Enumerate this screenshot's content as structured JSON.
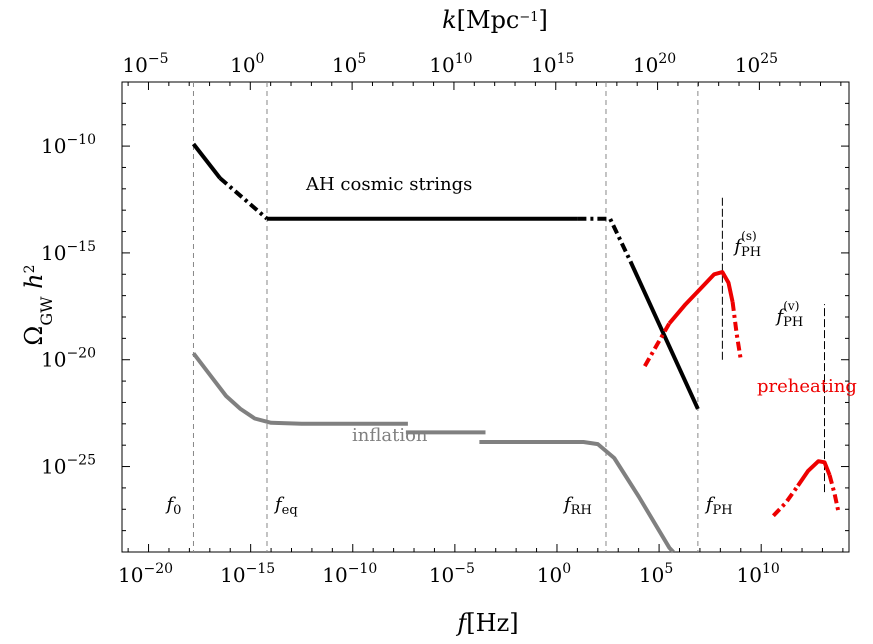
{
  "chart_data": {
    "type": "line",
    "xlabel": "f[Hz]",
    "ylabel": "Ω_GW h²",
    "top_xlabel": "k[Mpc⁻¹]",
    "x_scale": "log",
    "y_scale": "log",
    "xlim_exp": [
      -21.3,
      14.3
    ],
    "ylim_exp": [
      -29,
      -7
    ],
    "top_xlim_exp": [
      -6.3,
      29.4
    ],
    "x_ticks": [
      {
        "base": "10",
        "exp": "−20",
        "value_exp": -20
      },
      {
        "base": "10",
        "exp": "−15",
        "value_exp": -15
      },
      {
        "base": "10",
        "exp": "−10",
        "value_exp": -10
      },
      {
        "base": "10",
        "exp": "−5",
        "value_exp": -5
      },
      {
        "base": "10",
        "exp": "0",
        "value_exp": 0
      },
      {
        "base": "10",
        "exp": "5",
        "value_exp": 5
      },
      {
        "base": "10",
        "exp": "10",
        "value_exp": 10
      }
    ],
    "top_ticks": [
      {
        "base": "10",
        "exp": "−5",
        "value_exp": -5
      },
      {
        "base": "10",
        "exp": "0",
        "value_exp": 0
      },
      {
        "base": "10",
        "exp": "5",
        "value_exp": 5
      },
      {
        "base": "10",
        "exp": "10",
        "value_exp": 10
      },
      {
        "base": "10",
        "exp": "15",
        "value_exp": 15
      },
      {
        "base": "10",
        "exp": "20",
        "value_exp": 20
      },
      {
        "base": "10",
        "exp": "25",
        "value_exp": 25
      }
    ],
    "y_ticks": [
      {
        "base": "10",
        "exp": "−10",
        "value_exp": -10
      },
      {
        "base": "10",
        "exp": "−15",
        "value_exp": -15
      },
      {
        "base": "10",
        "exp": "−20",
        "value_exp": -20
      },
      {
        "base": "10",
        "exp": "−25",
        "value_exp": -25
      }
    ],
    "vlines": [
      {
        "main": "f",
        "sub": "0",
        "x_exp": -17.8
      },
      {
        "main": "f",
        "sub": "eq",
        "x_exp": -14.2
      },
      {
        "main": "f",
        "sub": "RH",
        "x_exp": 2.4
      },
      {
        "main": "f",
        "sub": "PH",
        "x_exp": 6.9
      }
    ],
    "peak_lines": [
      {
        "main": "f",
        "sub": "PH",
        "sup": "(s)",
        "x_exp": 8.1,
        "y_exp": [
          -20,
          -12.3
        ]
      },
      {
        "main": "f",
        "sub": "PH",
        "sup": "(v)",
        "x_exp": 13.1,
        "y_exp": [
          -26.2,
          -17.4
        ]
      }
    ],
    "annotations": {
      "cosmic_strings": "AH cosmic strings",
      "inflation": "inflation",
      "preheating": "preheating"
    },
    "series": [
      {
        "color": "#000000",
        "segments": [
          {
            "style": "solid",
            "points": [
              [
                -17.8,
                -9.9
              ],
              [
                -16.5,
                -11.5
              ]
            ]
          },
          {
            "style": "dotdash",
            "points": [
              [
                -16.5,
                -11.5
              ],
              [
                -14.2,
                -13.4
              ]
            ]
          },
          {
            "style": "solid",
            "points": [
              [
                -14.2,
                -13.4
              ],
              [
                1.0,
                -13.4
              ]
            ]
          },
          {
            "style": "dotdash",
            "points": [
              [
                1.0,
                -13.4
              ],
              [
                2.6,
                -13.4
              ],
              [
                3.6,
                -15.4
              ]
            ]
          },
          {
            "style": "solid",
            "points": [
              [
                3.6,
                -15.4
              ],
              [
                6.9,
                -22.3
              ]
            ]
          }
        ]
      },
      {
        "color": "#808080",
        "segments": [
          {
            "style": "solid",
            "points": [
              [
                -17.8,
                -19.7
              ],
              [
                -17.0,
                -20.7
              ],
              [
                -16.2,
                -21.7
              ],
              [
                -15.5,
                -22.3
              ],
              [
                -14.8,
                -22.75
              ],
              [
                -14.0,
                -22.95
              ],
              [
                -12.5,
                -23.0
              ],
              [
                -7.3,
                -23.0
              ]
            ]
          },
          {
            "style": "solid",
            "points": [
              [
                -7.4,
                -23.4
              ],
              [
                -3.5,
                -23.4
              ]
            ]
          },
          {
            "style": "solid",
            "points": [
              [
                -3.8,
                -23.85
              ],
              [
                1.3,
                -23.85
              ],
              [
                2.0,
                -23.95
              ],
              [
                2.8,
                -24.6
              ],
              [
                4.0,
                -26.4
              ],
              [
                5.5,
                -28.8
              ],
              [
                5.7,
                -29.0
              ]
            ]
          }
        ]
      },
      {
        "color": "#ee0000",
        "segments": [
          {
            "style": "dotdash",
            "points": [
              [
                4.3,
                -20.3
              ],
              [
                4.9,
                -19.3
              ],
              [
                5.5,
                -18.3
              ]
            ]
          },
          {
            "style": "solid",
            "points": [
              [
                5.5,
                -18.3
              ],
              [
                6.3,
                -17.4
              ],
              [
                7.1,
                -16.6
              ],
              [
                7.7,
                -16.0
              ],
              [
                8.1,
                -15.9
              ],
              [
                8.4,
                -16.4
              ],
              [
                8.6,
                -17.3
              ]
            ]
          },
          {
            "style": "dotdash",
            "points": [
              [
                8.6,
                -17.3
              ],
              [
                8.8,
                -18.8
              ],
              [
                9.0,
                -20.0
              ]
            ]
          }
        ]
      },
      {
        "color": "#ee0000",
        "segments": [
          {
            "style": "dotdash",
            "points": [
              [
                10.6,
                -27.3
              ],
              [
                11.2,
                -26.7
              ],
              [
                11.8,
                -25.9
              ]
            ]
          },
          {
            "style": "solid",
            "points": [
              [
                11.8,
                -25.9
              ],
              [
                12.3,
                -25.2
              ],
              [
                12.8,
                -24.75
              ],
              [
                13.1,
                -24.8
              ],
              [
                13.35,
                -25.4
              ]
            ]
          },
          {
            "style": "dotdash",
            "points": [
              [
                13.35,
                -25.4
              ],
              [
                13.6,
                -26.3
              ],
              [
                13.8,
                -27.2
              ]
            ]
          }
        ]
      }
    ]
  }
}
